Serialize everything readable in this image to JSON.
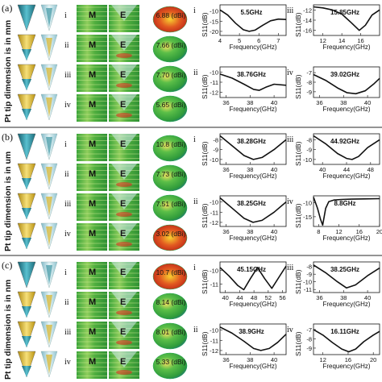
{
  "side_label": "Pt tip dimension is in",
  "panels": [
    {
      "label": "(a)",
      "unit": "mm",
      "rows": [
        {
          "numeral": "i",
          "gain": "6.88 (dBi)"
        },
        {
          "numeral": "ii",
          "gain": "7.66 (dBi)"
        },
        {
          "numeral": "iii",
          "gain": "7.70 (dBi)"
        },
        {
          "numeral": "iv",
          "gain": "5.65 (dBi)"
        }
      ],
      "plots": [
        {
          "numeral": "i",
          "freq": "5.5GHz",
          "xticks": [
            "4",
            "5",
            "6",
            "7"
          ],
          "xlim": [
            4,
            7.4
          ],
          "yticks": [
            "-10",
            "-15",
            "-20"
          ],
          "ylim": [
            -22,
            -7
          ],
          "x": [
            4.0,
            4.4,
            4.8,
            5.2,
            5.5,
            5.8,
            6.2,
            6.6,
            7.0,
            7.4
          ],
          "y": [
            -9.5,
            -12,
            -16,
            -19.2,
            -20,
            -19.4,
            -17,
            -14.8,
            -14,
            -14.2
          ]
        },
        {
          "numeral": "iii",
          "freq": "15.85GHz",
          "xticks": [
            "12",
            "14",
            "16"
          ],
          "xlim": [
            11,
            18
          ],
          "yticks": [
            "-12",
            "-14",
            "-16"
          ],
          "ylim": [
            -17,
            -11
          ],
          "x": [
            11,
            12,
            13,
            14,
            15,
            15.85,
            16.5,
            17.2,
            18
          ],
          "y": [
            -11.4,
            -11.6,
            -12,
            -12.8,
            -14.5,
            -16,
            -15,
            -13,
            -12
          ]
        },
        {
          "numeral": "ii",
          "freq": "38.76GHz",
          "xticks": [
            "36",
            "38",
            "40"
          ],
          "xlim": [
            35.5,
            41
          ],
          "yticks": [
            "-10",
            "-11",
            "-12"
          ],
          "ylim": [
            -12.5,
            -9.5
          ],
          "x": [
            35.5,
            36.5,
            37.5,
            38.3,
            38.76,
            39.3,
            40,
            41
          ],
          "y": [
            -10.2,
            -10.6,
            -11.2,
            -11.7,
            -11.8,
            -11.5,
            -11.2,
            -11.3
          ]
        },
        {
          "numeral": "iv",
          "freq": "39.02GHz",
          "xticks": [
            "36",
            "38",
            "40"
          ],
          "xlim": [
            35.5,
            41
          ],
          "yticks": [
            "-7",
            "-8",
            "-9"
          ],
          "ylim": [
            -9.6,
            -6.4
          ],
          "x": [
            35.5,
            36.5,
            37.5,
            38.3,
            39.02,
            39.8,
            40.5,
            41
          ],
          "y": [
            -7.2,
            -7.8,
            -8.6,
            -9.1,
            -9.2,
            -8.9,
            -8.2,
            -7.6
          ]
        }
      ]
    },
    {
      "label": "(b)",
      "unit": "um",
      "rows": [
        {
          "numeral": "i",
          "gain": "10.8 (dBi)"
        },
        {
          "numeral": "ii",
          "gain": "7.73 (dBi)"
        },
        {
          "numeral": "iii",
          "gain": "7.51 (dBi)"
        },
        {
          "numeral": "iv",
          "gain": "3.02 (dBi)"
        }
      ],
      "plots": [
        {
          "numeral": "i",
          "freq": "38.28GHz",
          "xticks": [
            "36",
            "38",
            "40"
          ],
          "xlim": [
            35.5,
            41
          ],
          "yticks": [
            "-8",
            "-9",
            "-10"
          ],
          "ylim": [
            -10.5,
            -7.4
          ],
          "x": [
            35.5,
            36.5,
            37.5,
            38.28,
            39,
            40,
            41
          ],
          "y": [
            -7.6,
            -8.6,
            -9.6,
            -10,
            -9.8,
            -9,
            -8
          ]
        },
        {
          "numeral": "iii",
          "freq": "44.92GHz",
          "xticks": [
            "40",
            "44",
            "48"
          ],
          "xlim": [
            38.5,
            49.5
          ],
          "yticks": [
            "-8",
            "-9",
            "-10"
          ],
          "ylim": [
            -10.5,
            -7.4
          ],
          "x": [
            38.5,
            40.5,
            42.5,
            44,
            44.92,
            46,
            47.5,
            49.5
          ],
          "y": [
            -7.6,
            -8.4,
            -9.4,
            -9.9,
            -10,
            -9.7,
            -8.8,
            -8
          ]
        },
        {
          "numeral": "ii",
          "freq": "38.25GHz",
          "xticks": [
            "36",
            "38",
            "40"
          ],
          "xlim": [
            35.5,
            41
          ],
          "yticks": [
            "-10",
            "-11",
            "-12"
          ],
          "ylim": [
            -12.4,
            -9.4
          ],
          "x": [
            35.5,
            36.5,
            37.5,
            38.25,
            39,
            40,
            41
          ],
          "y": [
            -9.6,
            -10.6,
            -11.6,
            -12,
            -11.8,
            -11,
            -10
          ]
        },
        {
          "numeral": "iv",
          "freq": "8.8GHz",
          "xticks": [
            "8",
            "12",
            "16",
            "20"
          ],
          "xlim": [
            7,
            20
          ],
          "yticks": [
            "-10",
            "-15"
          ],
          "ylim": [
            -18.5,
            -7.5
          ],
          "x": [
            7,
            7.8,
            8.4,
            8.8,
            9.4,
            10,
            11,
            12.5,
            14.5,
            17,
            20
          ],
          "y": [
            -8,
            -12,
            -16,
            -18,
            -12,
            -9.6,
            -9,
            -8.8,
            -8.7,
            -8.6,
            -8.5
          ]
        }
      ]
    },
    {
      "label": "(c)",
      "unit": "nm",
      "rows": [
        {
          "numeral": "i",
          "gain": "10.7 (dBi)"
        },
        {
          "numeral": "ii",
          "gain": "8.14 (dBi)"
        },
        {
          "numeral": "iii",
          "gain": "8.01 (dBi)"
        },
        {
          "numeral": "iv",
          "gain": "5.33 (dBi)"
        }
      ],
      "plots": [
        {
          "numeral": "i",
          "freq": "45.15GHz",
          "xticks": [
            "40",
            "44",
            "48",
            "52",
            "56"
          ],
          "xlim": [
            38.5,
            57
          ],
          "yticks": [
            "-10",
            "-11"
          ],
          "ylim": [
            -11.6,
            -9.4
          ],
          "x": [
            38.5,
            41,
            43.5,
            45.15,
            47,
            49,
            51,
            53,
            55,
            57
          ],
          "y": [
            -9.8,
            -10.4,
            -11.1,
            -11.4,
            -10.6,
            -9.8,
            -10.6,
            -11.3,
            -10.5,
            -9.7
          ]
        },
        {
          "numeral": "iii",
          "freq": "38.25GHz",
          "xticks": [
            "36",
            "38",
            "40"
          ],
          "xlim": [
            35.5,
            41
          ],
          "yticks": [
            "-8",
            "-9",
            "-10",
            "-11"
          ],
          "ylim": [
            -11.4,
            -7.4
          ],
          "x": [
            35.5,
            36.5,
            37.5,
            38.25,
            39,
            40,
            41
          ],
          "y": [
            -7.8,
            -8.8,
            -10,
            -10.8,
            -10.4,
            -9.2,
            -8.2
          ]
        },
        {
          "numeral": "ii",
          "freq": "38.9GHz",
          "xticks": [
            "36",
            "38",
            "40"
          ],
          "xlim": [
            35.5,
            41
          ],
          "yticks": [
            "-10",
            "-11",
            "-12"
          ],
          "ylim": [
            -12.4,
            -9.4
          ],
          "x": [
            35.5,
            36.5,
            37.5,
            38.3,
            38.9,
            39.6,
            40.3,
            41
          ],
          "y": [
            -9.7,
            -10.3,
            -11.1,
            -11.8,
            -12,
            -11.8,
            -11.2,
            -10.4
          ]
        },
        {
          "numeral": "iv",
          "freq": "16.11GHz",
          "xticks": [
            "12",
            "16",
            "20"
          ],
          "xlim": [
            10.5,
            21
          ],
          "yticks": [
            "-7",
            "-8",
            "-9"
          ],
          "ylim": [
            -9.7,
            -6.4
          ],
          "x": [
            10.5,
            12,
            13.5,
            15,
            16.11,
            17.2,
            18.5,
            20,
            21
          ],
          "y": [
            -7,
            -7.6,
            -8.4,
            -9.1,
            -9.4,
            -9.1,
            -8.3,
            -7.6,
            -7.2
          ]
        }
      ]
    }
  ],
  "labels": {
    "m": "M",
    "e": "E",
    "ylabel": "S11(dB)",
    "xlabel": "Frequency(GHz)"
  },
  "colors": {
    "tip_blue": "#2f8fa0",
    "tip_yellow": "#e8c020",
    "field_green": "#3fae3a",
    "hot_red": "#d93020",
    "curve": "#111111"
  }
}
